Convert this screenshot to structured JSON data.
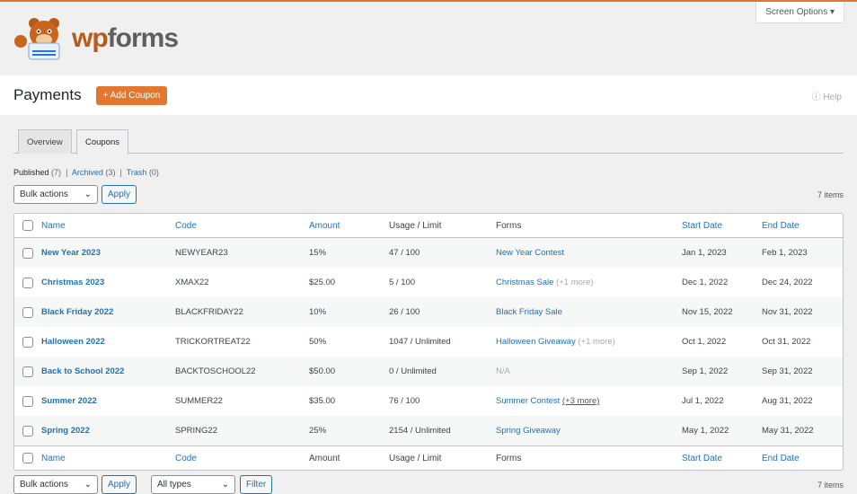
{
  "brand": {
    "logo_text": "wpforms"
  },
  "screen_options": "Screen Options ▾",
  "page": {
    "title": "Payments",
    "add_button": "+ Add Coupon",
    "help": "ⓘ Help"
  },
  "tabs": [
    {
      "label": "Overview"
    },
    {
      "label": "Coupons"
    }
  ],
  "filters": {
    "published": "Published",
    "published_count": "(7)",
    "archived": "Archived",
    "archived_count": "(3)",
    "trash": "Trash",
    "trash_count": "(0)",
    "sep": "|"
  },
  "toolbar": {
    "bulk": "Bulk actions",
    "apply": "Apply",
    "types": "All types",
    "filter": "Filter",
    "items": "7 items"
  },
  "columns": {
    "name": "Name",
    "code": "Code",
    "amount": "Amount",
    "usage": "Usage / Limit",
    "forms": "Forms",
    "start": "Start Date",
    "end": "End Date"
  },
  "rows": [
    {
      "name": "New Year 2023",
      "code": "NEWYEAR23",
      "amount": "15%",
      "usage": "47 / 100",
      "form": "New Year Contest",
      "more": "",
      "start": "Jan 1, 2023",
      "end": "Feb 1, 2023"
    },
    {
      "name": "Christmas 2023",
      "code": "XMAX22",
      "amount": "$25.00",
      "usage": "5 / 100",
      "form": "Christmas Sale",
      "more": "(+1 more)",
      "start": "Dec 1, 2022",
      "end": "Dec 24, 2022"
    },
    {
      "name": "Black Friday 2022",
      "code": "BLACKFRIDAY22",
      "amount": "10%",
      "usage": "26 / 100",
      "form": "Black Friday Sale",
      "more": "",
      "start": "Nov 15, 2022",
      "end": "Nov 31, 2022"
    },
    {
      "name": "Halloween 2022",
      "code": "TRICKORTREAT22",
      "amount": "50%",
      "usage": "1047 / Unlimited",
      "form": "Halloween Giveaway",
      "more": "(+1 more)",
      "start": "Oct 1, 2022",
      "end": "Oct 31, 2022"
    },
    {
      "name": "Back to School 2022",
      "code": "BACKTOSCHOOL22",
      "amount": "$50.00",
      "usage": "0 / Unlimited",
      "form": "",
      "na": "N/A",
      "more": "",
      "start": "Sep 1, 2022",
      "end": "Sep 31, 2022"
    },
    {
      "name": "Summer 2022",
      "code": "SUMMER22",
      "amount": "$35.00",
      "usage": "76 / 100",
      "form": "Summer Contest",
      "more": "(+3 more)",
      "start": "Jul 1, 2022",
      "end": "Aug 31, 2022"
    },
    {
      "name": "Spring 2022",
      "code": "SPRING22",
      "amount": "25%",
      "usage": "2154 / Unlimited",
      "form": "Spring Giveaway",
      "more": "",
      "start": "May 1, 2022",
      "end": "May 31, 2022"
    }
  ]
}
